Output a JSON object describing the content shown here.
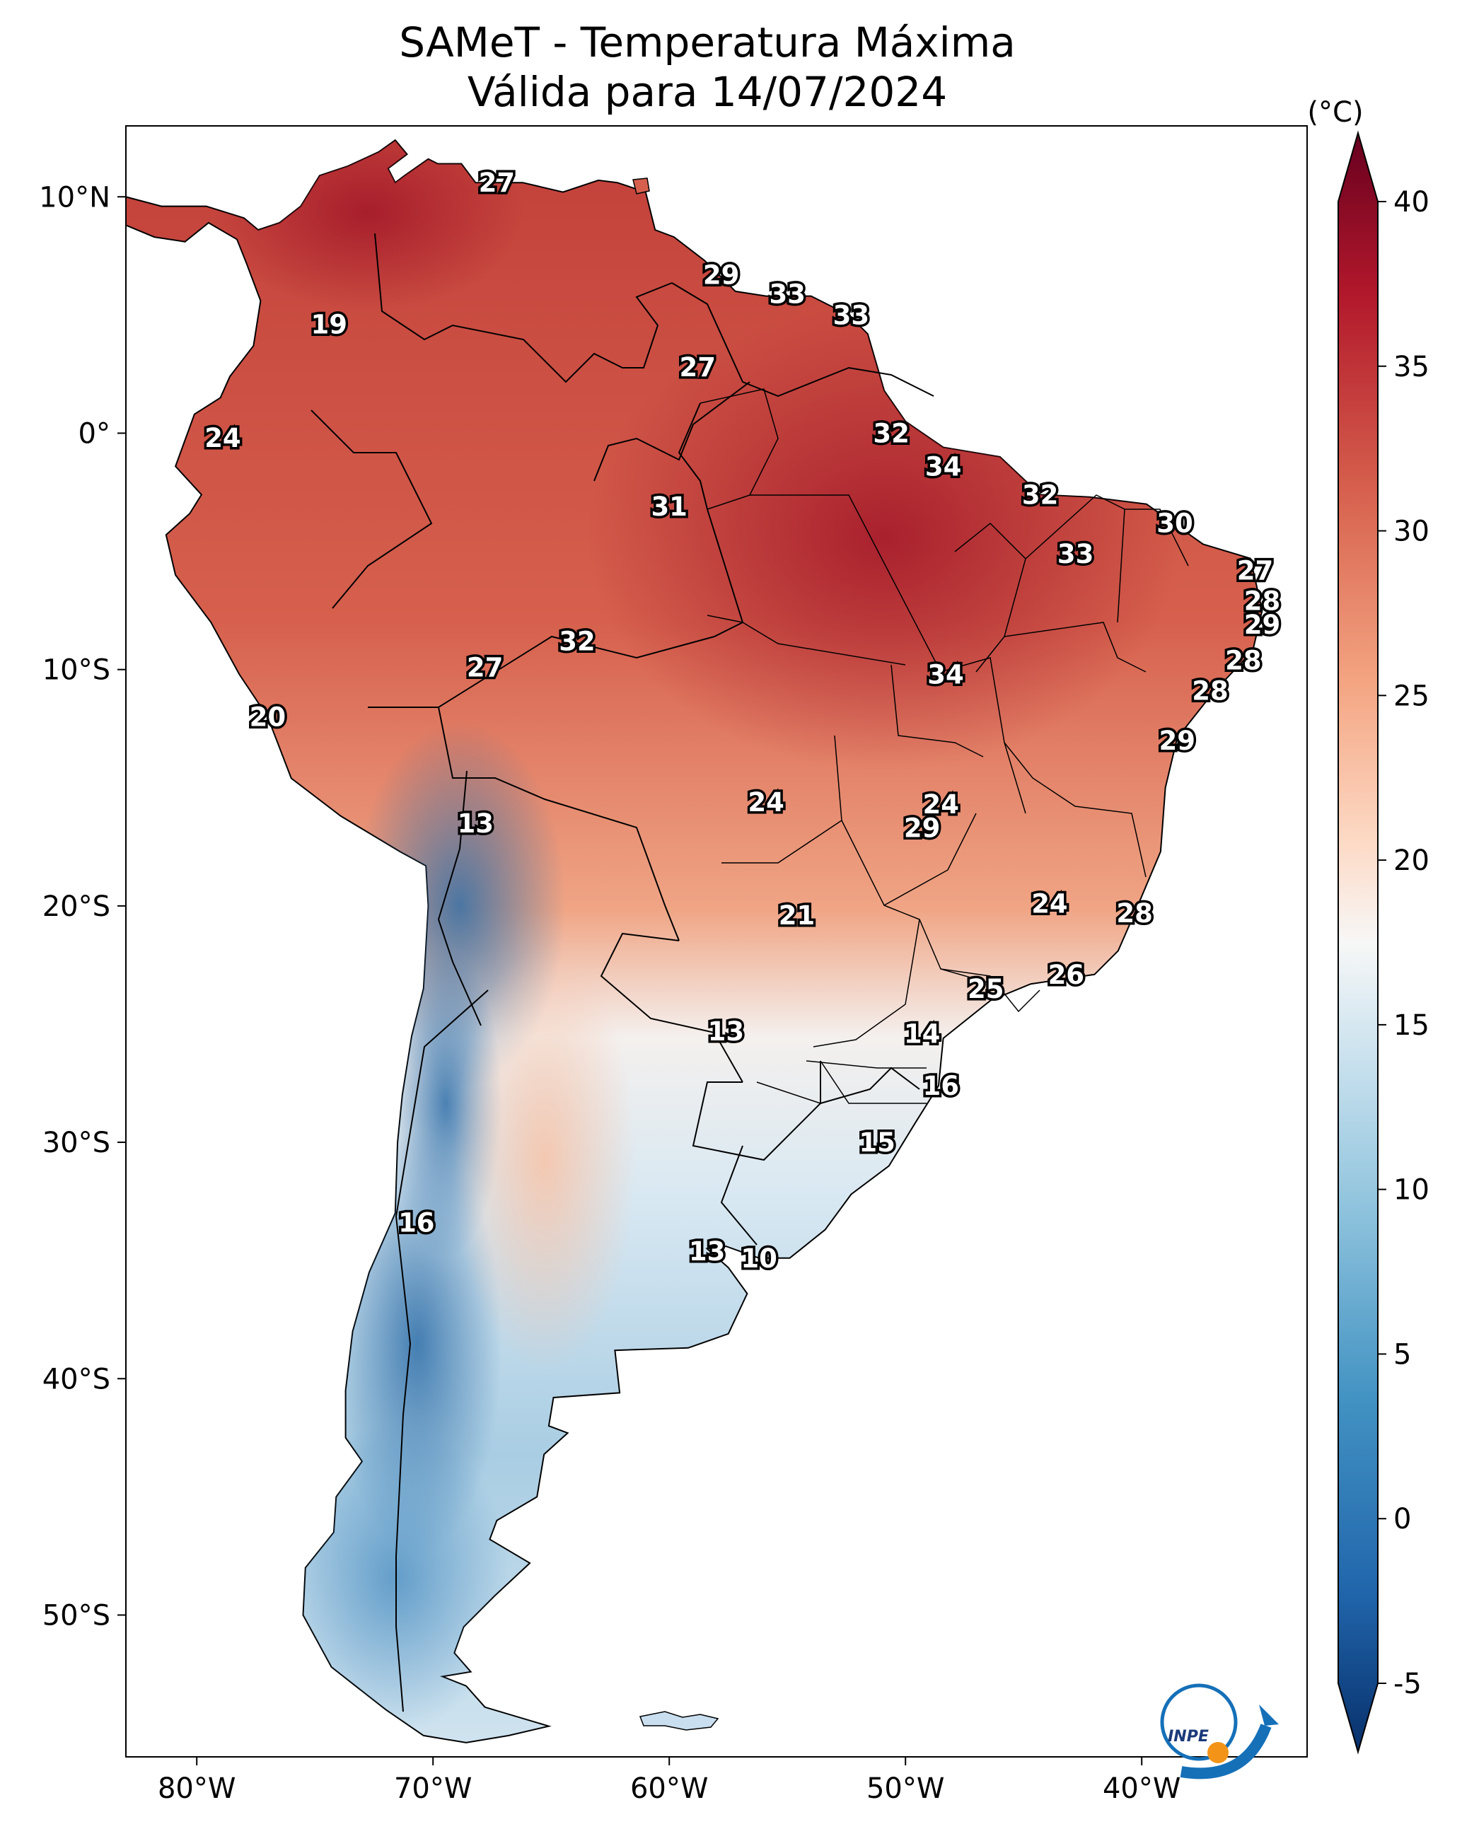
{
  "title": {
    "line1": "SAMeT - Temperatura Máxima",
    "line2": "Válida para 14/07/2024"
  },
  "axes": {
    "x_ticks": [
      {
        "lon": -80,
        "label": "80°W"
      },
      {
        "lon": -70,
        "label": "70°W"
      },
      {
        "lon": -60,
        "label": "60°W"
      },
      {
        "lon": -50,
        "label": "50°W"
      },
      {
        "lon": -40,
        "label": "40°W"
      }
    ],
    "y_ticks": [
      {
        "lat": 10,
        "label": "10°N"
      },
      {
        "lat": 0,
        "label": "0°"
      },
      {
        "lat": -10,
        "label": "10°S"
      },
      {
        "lat": -20,
        "label": "20°S"
      },
      {
        "lat": -30,
        "label": "30°S"
      },
      {
        "lat": -40,
        "label": "40°S"
      },
      {
        "lat": -50,
        "label": "50°S"
      }
    ],
    "lon_range": [
      -83,
      -33
    ],
    "lat_range": [
      -56,
      13
    ]
  },
  "colorbar": {
    "unit": "(°C)",
    "ticks": [
      {
        "value": 40,
        "label": "40"
      },
      {
        "value": 35,
        "label": "35"
      },
      {
        "value": 30,
        "label": "30"
      },
      {
        "value": 25,
        "label": "25"
      },
      {
        "value": 20,
        "label": "20"
      },
      {
        "value": 15,
        "label": "15"
      },
      {
        "value": 10,
        "label": "10"
      },
      {
        "value": 5,
        "label": "5"
      },
      {
        "value": 0,
        "label": "0"
      },
      {
        "value": -5,
        "label": "-5"
      }
    ],
    "range": [
      -5,
      40
    ],
    "colors": [
      "#08306b",
      "#2166ac",
      "#4393c3",
      "#92c5de",
      "#d1e5f0",
      "#f7f7f7",
      "#fddbc7",
      "#f4a582",
      "#d6604d",
      "#b2182b",
      "#67001f"
    ]
  },
  "city_values": [
    {
      "lon": -67.3,
      "lat": 10.6,
      "value": "27"
    },
    {
      "lon": -57.8,
      "lat": 6.7,
      "value": "29"
    },
    {
      "lon": -55.0,
      "lat": 5.9,
      "value": "33"
    },
    {
      "lon": -52.3,
      "lat": 5.0,
      "value": "33"
    },
    {
      "lon": -74.4,
      "lat": 4.6,
      "value": "19"
    },
    {
      "lon": -58.8,
      "lat": 2.8,
      "value": "27"
    },
    {
      "lon": -50.6,
      "lat": 0.0,
      "value": "32"
    },
    {
      "lon": -78.9,
      "lat": -0.2,
      "value": "24"
    },
    {
      "lon": -48.4,
      "lat": -1.4,
      "value": "34"
    },
    {
      "lon": -44.3,
      "lat": -2.6,
      "value": "32"
    },
    {
      "lon": -60.0,
      "lat": -3.1,
      "value": "31"
    },
    {
      "lon": -38.6,
      "lat": -3.8,
      "value": "30"
    },
    {
      "lon": -42.8,
      "lat": -5.1,
      "value": "33"
    },
    {
      "lon": -35.2,
      "lat": -5.8,
      "value": "27"
    },
    {
      "lon": -34.9,
      "lat": -7.1,
      "value": "28"
    },
    {
      "lon": -34.9,
      "lat": -8.1,
      "value": "29"
    },
    {
      "lon": -63.9,
      "lat": -8.8,
      "value": "32"
    },
    {
      "lon": -35.7,
      "lat": -9.6,
      "value": "28"
    },
    {
      "lon": -48.3,
      "lat": -10.2,
      "value": "34"
    },
    {
      "lon": -67.8,
      "lat": -9.9,
      "value": "27"
    },
    {
      "lon": -37.1,
      "lat": -10.9,
      "value": "28"
    },
    {
      "lon": -77.0,
      "lat": -12.0,
      "value": "20"
    },
    {
      "lon": -38.5,
      "lat": -13.0,
      "value": "29"
    },
    {
      "lon": -55.9,
      "lat": -15.6,
      "value": "24"
    },
    {
      "lon": -48.5,
      "lat": -15.7,
      "value": "24"
    },
    {
      "lon": -49.3,
      "lat": -16.7,
      "value": "29"
    },
    {
      "lon": -68.2,
      "lat": -16.5,
      "value": "13"
    },
    {
      "lon": -43.9,
      "lat": -19.9,
      "value": "24"
    },
    {
      "lon": -40.3,
      "lat": -20.3,
      "value": "28"
    },
    {
      "lon": -54.6,
      "lat": -20.4,
      "value": "21"
    },
    {
      "lon": -43.2,
      "lat": -22.9,
      "value": "26"
    },
    {
      "lon": -46.6,
      "lat": -23.5,
      "value": "25"
    },
    {
      "lon": -57.6,
      "lat": -25.3,
      "value": "13"
    },
    {
      "lon": -49.3,
      "lat": -25.4,
      "value": "14"
    },
    {
      "lon": -48.5,
      "lat": -27.6,
      "value": "16"
    },
    {
      "lon": -51.2,
      "lat": -30.0,
      "value": "15"
    },
    {
      "lon": -70.7,
      "lat": -33.4,
      "value": "16"
    },
    {
      "lon": -58.4,
      "lat": -34.6,
      "value": "13"
    },
    {
      "lon": -56.2,
      "lat": -34.9,
      "value": "10"
    }
  ],
  "logo": {
    "text": "INPE"
  }
}
